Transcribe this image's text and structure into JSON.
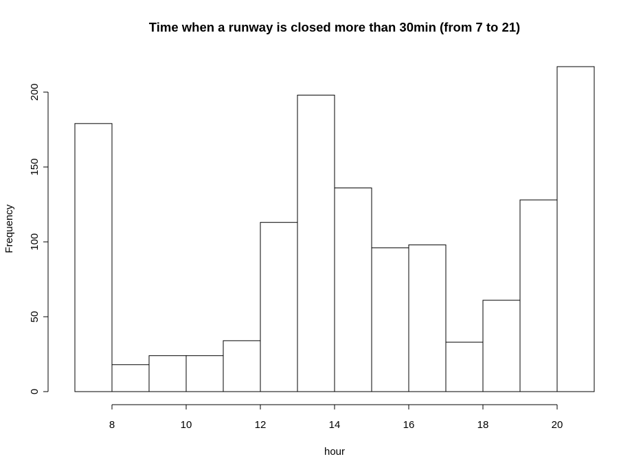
{
  "chart_data": {
    "type": "bar",
    "title": "Time when a runway is closed more than 30min (from 7 to 21)",
    "xlabel": "hour",
    "ylabel": "Frequency",
    "bin_edges": [
      7,
      8,
      9,
      10,
      11,
      12,
      13,
      14,
      15,
      16,
      17,
      18,
      19,
      20,
      21
    ],
    "values": [
      179,
      18,
      24,
      24,
      34,
      113,
      198,
      136,
      96,
      98,
      33,
      61,
      128,
      217
    ],
    "x_ticks": [
      8,
      10,
      12,
      14,
      16,
      18,
      20
    ],
    "y_ticks": [
      0,
      50,
      100,
      150,
      200
    ],
    "xlim": [
      7,
      21
    ],
    "ylim": [
      0,
      217
    ],
    "grid": false,
    "legend": "none",
    "colors": {
      "bar_fill": "#ffffff",
      "bar_stroke": "#000000"
    }
  }
}
